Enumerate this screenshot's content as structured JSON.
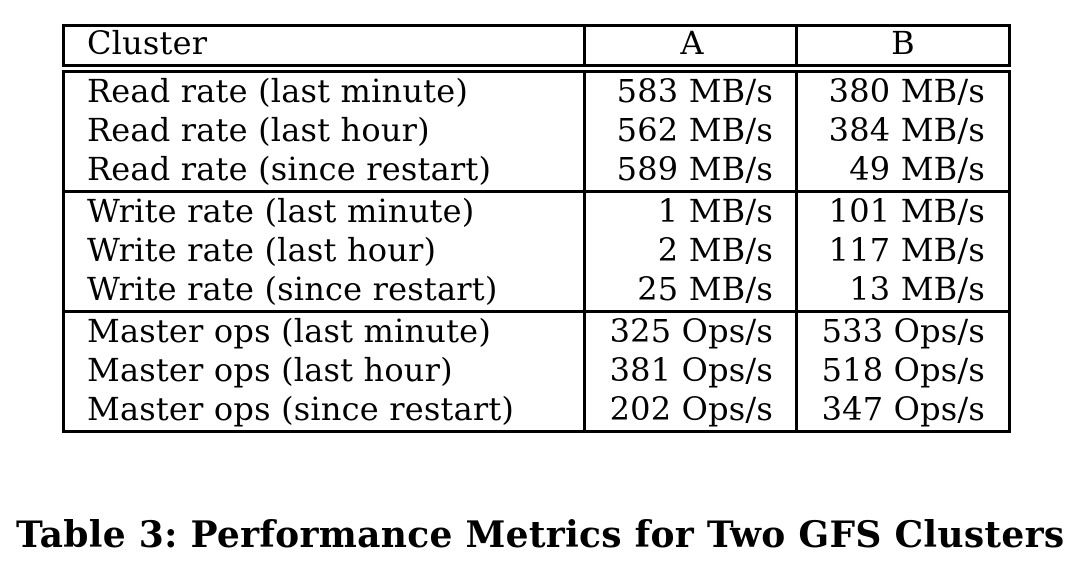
{
  "table": {
    "header": {
      "cluster": "Cluster",
      "a": "A",
      "b": "B"
    },
    "groups": [
      {
        "rows": [
          {
            "metric": "Read rate (last minute)",
            "a": "583 MB/s",
            "b": "380 MB/s"
          },
          {
            "metric": "Read rate (last hour)",
            "a": "562 MB/s",
            "b": "384 MB/s"
          },
          {
            "metric": "Read rate (since restart)",
            "a": "589 MB/s",
            "b": "49 MB/s"
          }
        ]
      },
      {
        "rows": [
          {
            "metric": "Write rate (last minute)",
            "a": "1 MB/s",
            "b": "101 MB/s"
          },
          {
            "metric": "Write rate (last hour)",
            "a": "2 MB/s",
            "b": "117 MB/s"
          },
          {
            "metric": "Write rate (since restart)",
            "a": "25 MB/s",
            "b": "13 MB/s"
          }
        ]
      },
      {
        "rows": [
          {
            "metric": "Master ops (last minute)",
            "a": "325 Ops/s",
            "b": "533 Ops/s"
          },
          {
            "metric": "Master ops (last hour)",
            "a": "381 Ops/s",
            "b": "518 Ops/s"
          },
          {
            "metric": "Master ops (since restart)",
            "a": "202 Ops/s",
            "b": "347 Ops/s"
          }
        ]
      }
    ]
  },
  "caption": "Table 3: Performance Metrics for Two GFS Clusters"
}
